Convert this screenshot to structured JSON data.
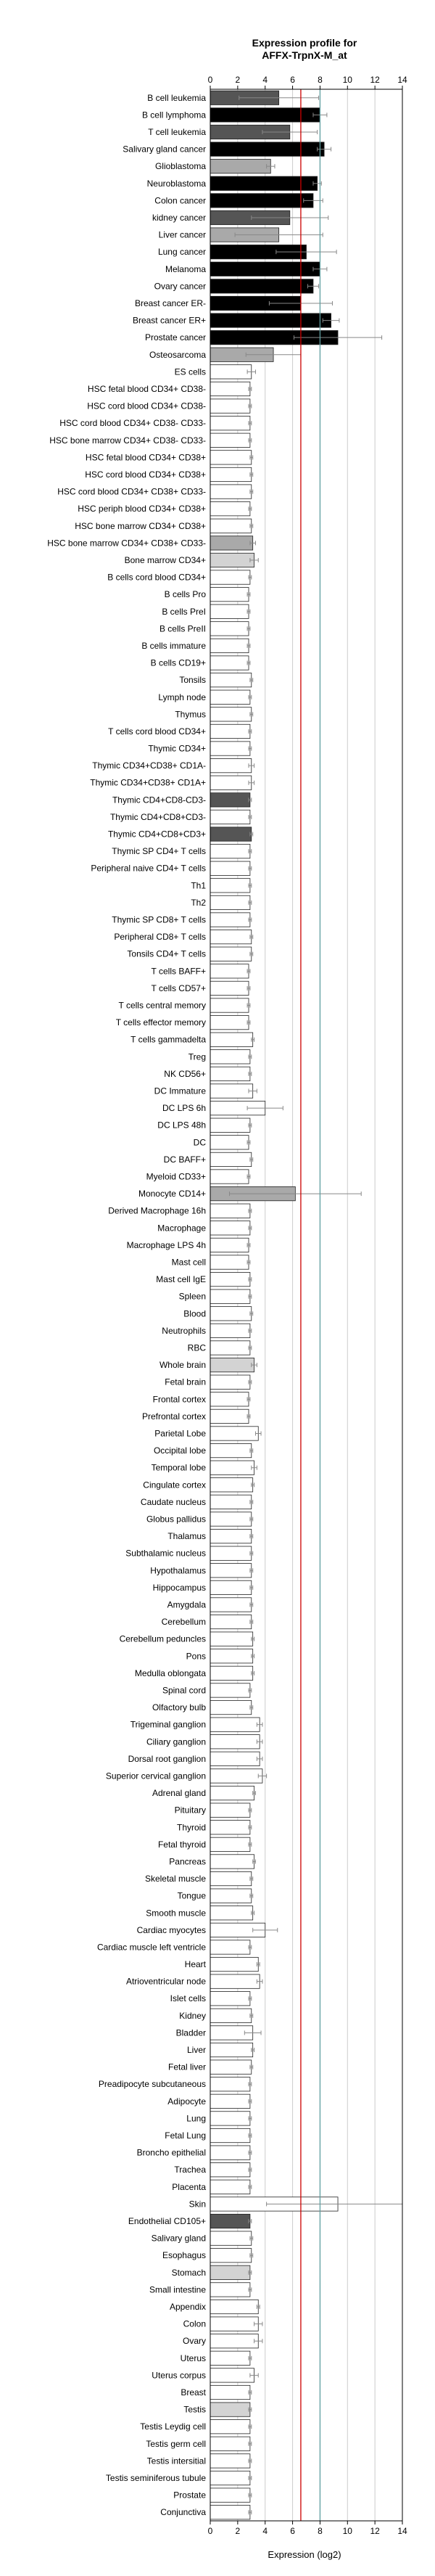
{
  "chart_data": {
    "type": "bar",
    "orientation": "horizontal",
    "title": [
      "Expression profile for",
      "AFFX-TrpnX-M_at"
    ],
    "xlabel": "Expression (log2)",
    "ylabel": "",
    "xlim": [
      0,
      14
    ],
    "xticks": [
      0,
      2,
      4,
      6,
      8,
      10,
      12,
      14
    ],
    "grid": "vertical",
    "reference_lines": [
      {
        "value": 6.6,
        "color": "#cc0000"
      },
      {
        "value": 8.0,
        "color": "#5f9ea0"
      }
    ],
    "colors": {
      "darker": "#000000",
      "dark": "#555555",
      "mid": "#a9a9a9",
      "light": "#d3d3d3",
      "white": "#ffffff",
      "errorbar": "#888888"
    },
    "categories": [
      "B cell leukemia",
      "B cell lymphoma",
      "T cell leukemia",
      "Salivary gland cancer",
      "Glioblastoma",
      "Neuroblastoma",
      "Colon cancer",
      "kidney cancer",
      "Liver cancer",
      "Lung cancer",
      "Melanoma",
      "Ovary cancer",
      "Breast cancer ER-",
      "Breast cancer ER+",
      "Prostate cancer",
      "Osteosarcoma",
      "ES cells",
      "HSC fetal blood CD34+ CD38-",
      "HSC cord blood CD34+ CD38-",
      "HSC cord blood CD34+ CD38- CD33-",
      "HSC bone marrow CD34+ CD38- CD33-",
      "HSC fetal blood CD34+ CD38+",
      "HSC cord blood CD34+ CD38+",
      "HSC cord blood CD34+ CD38+ CD33-",
      "HSC periph blood CD34+ CD38+",
      "HSC bone marrow CD34+ CD38+",
      "HSC bone marrow CD34+ CD38+ CD33-",
      "Bone marrow CD34+",
      "B cells cord blood CD34+",
      "B cells Pro",
      "B cells PreI",
      "B cells PreII",
      "B cells immature",
      "B cells CD19+",
      "Tonsils",
      "Lymph node",
      "Thymus",
      "T cells cord blood CD34+",
      "Thymic CD34+",
      "Thymic CD34+CD38+ CD1A-",
      "Thymic CD34+CD38+ CD1A+",
      "Thymic CD4+CD8-CD3-",
      "Thymic CD4+CD8+CD3-",
      "Thymic CD4+CD8+CD3+",
      "Thymic SP CD4+ T cells",
      "Peripheral naive CD4+ T cells",
      "Th1",
      "Th2",
      "Thymic SP CD8+ T cells",
      "Peripheral CD8+ T cells",
      "Tonsils CD4+ T cells",
      "T cells BAFF+",
      "T cells CD57+",
      "T cells central memory",
      "T cells effector memory",
      "T cells gammadelta",
      "Treg",
      "NK CD56+",
      "DC Immature",
      "DC LPS 6h",
      "DC LPS 48h",
      "DC",
      "DC BAFF+",
      "Myeloid CD33+",
      "Monocyte CD14+",
      "Derived Macrophage 16h",
      "Macrophage",
      "Macrophage LPS 4h",
      "Mast cell",
      "Mast cell IgE",
      "Spleen",
      "Blood",
      "Neutrophils",
      "RBC",
      "Whole brain",
      "Fetal brain",
      "Frontal cortex",
      "Prefrontal cortex",
      "Parietal Lobe",
      "Occipital lobe",
      "Temporal lobe",
      "Cingulate cortex",
      "Caudate nucleus",
      "Globus pallidus",
      "Thalamus",
      "Subthalamic nucleus",
      "Hypothalamus",
      "Hippocampus",
      "Amygdala",
      "Cerebellum",
      "Cerebellum peduncles",
      "Pons",
      "Medulla oblongata",
      "Spinal cord",
      "Olfactory bulb",
      "Trigeminal ganglion",
      "Ciliary ganglion",
      "Dorsal root ganglion",
      "Superior cervical ganglion",
      "Adrenal gland",
      "Pituitary",
      "Thyroid",
      "Fetal thyroid",
      "Pancreas",
      "Skeletal muscle",
      "Tongue",
      "Smooth muscle",
      "Cardiac myocytes",
      "Cardiac muscle left ventricle",
      "Heart",
      "Atrioventricular node",
      "Islet cells",
      "Kidney",
      "Bladder",
      "Liver",
      "Fetal liver",
      "Preadipocyte subcutaneous",
      "Adipocyte",
      "Lung",
      "Fetal Lung",
      "Broncho epithelial",
      "Trachea",
      "Placenta",
      "Skin",
      "Endothelial CD105+",
      "Salivary gland",
      "Esophagus",
      "Stomach",
      "Small intestine",
      "Appendix",
      "Colon",
      "Ovary",
      "Uterus",
      "Uterus corpus",
      "Breast",
      "Testis",
      "Testis Leydig cell",
      "Testis germ cell",
      "Testis intersitial",
      "Testis seminiferous tubule",
      "Prostate",
      "Conjunctiva"
    ],
    "values": [
      5.0,
      8.0,
      5.8,
      8.3,
      4.4,
      7.8,
      7.5,
      5.8,
      5.0,
      7.0,
      8.0,
      7.5,
      6.6,
      8.8,
      9.3,
      4.6,
      3.0,
      2.9,
      2.9,
      2.9,
      2.9,
      3.0,
      3.0,
      3.0,
      2.9,
      3.0,
      3.1,
      3.2,
      2.9,
      2.8,
      2.8,
      2.8,
      2.8,
      2.8,
      3.0,
      2.9,
      3.0,
      2.9,
      2.9,
      3.0,
      3.0,
      2.9,
      2.9,
      3.0,
      2.9,
      2.9,
      2.9,
      2.9,
      2.9,
      3.0,
      3.0,
      2.8,
      2.8,
      2.8,
      2.8,
      3.1,
      2.9,
      2.9,
      3.1,
      4.0,
      2.9,
      2.8,
      3.0,
      2.8,
      6.2,
      2.9,
      2.9,
      2.8,
      2.8,
      2.9,
      2.9,
      3.0,
      2.9,
      2.9,
      3.2,
      2.9,
      2.8,
      2.8,
      3.5,
      3.0,
      3.2,
      3.1,
      3.0,
      3.0,
      3.0,
      3.0,
      3.0,
      3.0,
      3.0,
      3.0,
      3.1,
      3.1,
      3.1,
      2.9,
      3.0,
      3.6,
      3.6,
      3.6,
      3.8,
      3.2,
      2.9,
      2.9,
      2.9,
      3.2,
      3.0,
      3.0,
      3.1,
      4.0,
      2.9,
      3.5,
      3.6,
      2.9,
      3.0,
      3.1,
      3.1,
      3.0,
      2.9,
      2.9,
      2.9,
      2.9,
      2.9,
      2.9,
      2.9,
      9.3,
      2.9,
      3.0,
      3.0,
      2.9,
      2.9,
      3.5,
      3.5,
      3.5,
      2.9,
      3.2,
      2.9,
      2.9,
      2.9,
      2.9,
      2.9,
      2.9,
      2.9,
      2.9
    ],
    "errors": [
      2.9,
      0.5,
      2.0,
      0.5,
      0.3,
      0.3,
      0.7,
      2.8,
      3.2,
      2.2,
      0.5,
      0.4,
      2.3,
      0.6,
      3.2,
      2.0,
      0.3,
      0.1,
      0.1,
      0.1,
      0.1,
      0.1,
      0.1,
      0.1,
      0.1,
      0.1,
      0.2,
      0.3,
      0.1,
      0.1,
      0.1,
      0.1,
      0.1,
      0.1,
      0.1,
      0.1,
      0.1,
      0.1,
      0.1,
      0.2,
      0.2,
      0.1,
      0.1,
      0.1,
      0.1,
      0.1,
      0.1,
      0.1,
      0.1,
      0.1,
      0.1,
      0.1,
      0.1,
      0.1,
      0.1,
      0.1,
      0.1,
      0.1,
      0.3,
      1.3,
      0.1,
      0.1,
      0.1,
      0.1,
      4.8,
      0.1,
      0.1,
      0.1,
      0.1,
      0.1,
      0.1,
      0.1,
      0.1,
      0.1,
      0.2,
      0.1,
      0.1,
      0.1,
      0.2,
      0.1,
      0.2,
      0.1,
      0.1,
      0.1,
      0.1,
      0.1,
      0.1,
      0.1,
      0.1,
      0.1,
      0.1,
      0.1,
      0.1,
      0.1,
      0.1,
      0.2,
      0.2,
      0.2,
      0.3,
      0.1,
      0.1,
      0.1,
      0.1,
      0.1,
      0.1,
      0.1,
      0.1,
      0.9,
      0.1,
      0.1,
      0.2,
      0.1,
      0.1,
      0.6,
      0.1,
      0.1,
      0.1,
      0.1,
      0.1,
      0.1,
      0.1,
      0.1,
      0.1,
      5.2,
      0.1,
      0.1,
      0.1,
      0.1,
      0.1,
      0.1,
      0.3,
      0.3,
      0.1,
      0.3,
      0.1,
      0.1,
      0.1,
      0.1,
      0.1,
      0.1,
      0.1,
      0.1
    ],
    "fills": [
      "dark",
      "darker",
      "dark",
      "darker",
      "mid",
      "darker",
      "darker",
      "dark",
      "mid",
      "darker",
      "darker",
      "darker",
      "darker",
      "darker",
      "darker",
      "mid",
      "white",
      "white",
      "white",
      "white",
      "white",
      "white",
      "white",
      "white",
      "white",
      "white",
      "mid",
      "light",
      "white",
      "white",
      "white",
      "white",
      "white",
      "white",
      "white",
      "white",
      "white",
      "white",
      "white",
      "white",
      "white",
      "dark",
      "white",
      "dark",
      "white",
      "white",
      "white",
      "white",
      "white",
      "white",
      "white",
      "white",
      "white",
      "white",
      "white",
      "white",
      "white",
      "white",
      "white",
      "white",
      "white",
      "white",
      "white",
      "white",
      "mid",
      "white",
      "white",
      "white",
      "white",
      "white",
      "white",
      "white",
      "white",
      "white",
      "light",
      "white",
      "white",
      "white",
      "white",
      "white",
      "white",
      "white",
      "white",
      "white",
      "white",
      "white",
      "white",
      "white",
      "white",
      "white",
      "white",
      "white",
      "white",
      "white",
      "white",
      "white",
      "white",
      "white",
      "white",
      "white",
      "white",
      "white",
      "white",
      "white",
      "white",
      "white",
      "white",
      "white",
      "white",
      "white",
      "white",
      "white",
      "white",
      "white",
      "white",
      "white",
      "white",
      "white",
      "white",
      "white",
      "white",
      "white",
      "white",
      "white",
      "dark",
      "white",
      "white",
      "light",
      "white",
      "white",
      "white",
      "white",
      "white",
      "white",
      "white",
      "light",
      "white",
      "white",
      "white",
      "white",
      "white",
      "white",
      "white"
    ]
  }
}
